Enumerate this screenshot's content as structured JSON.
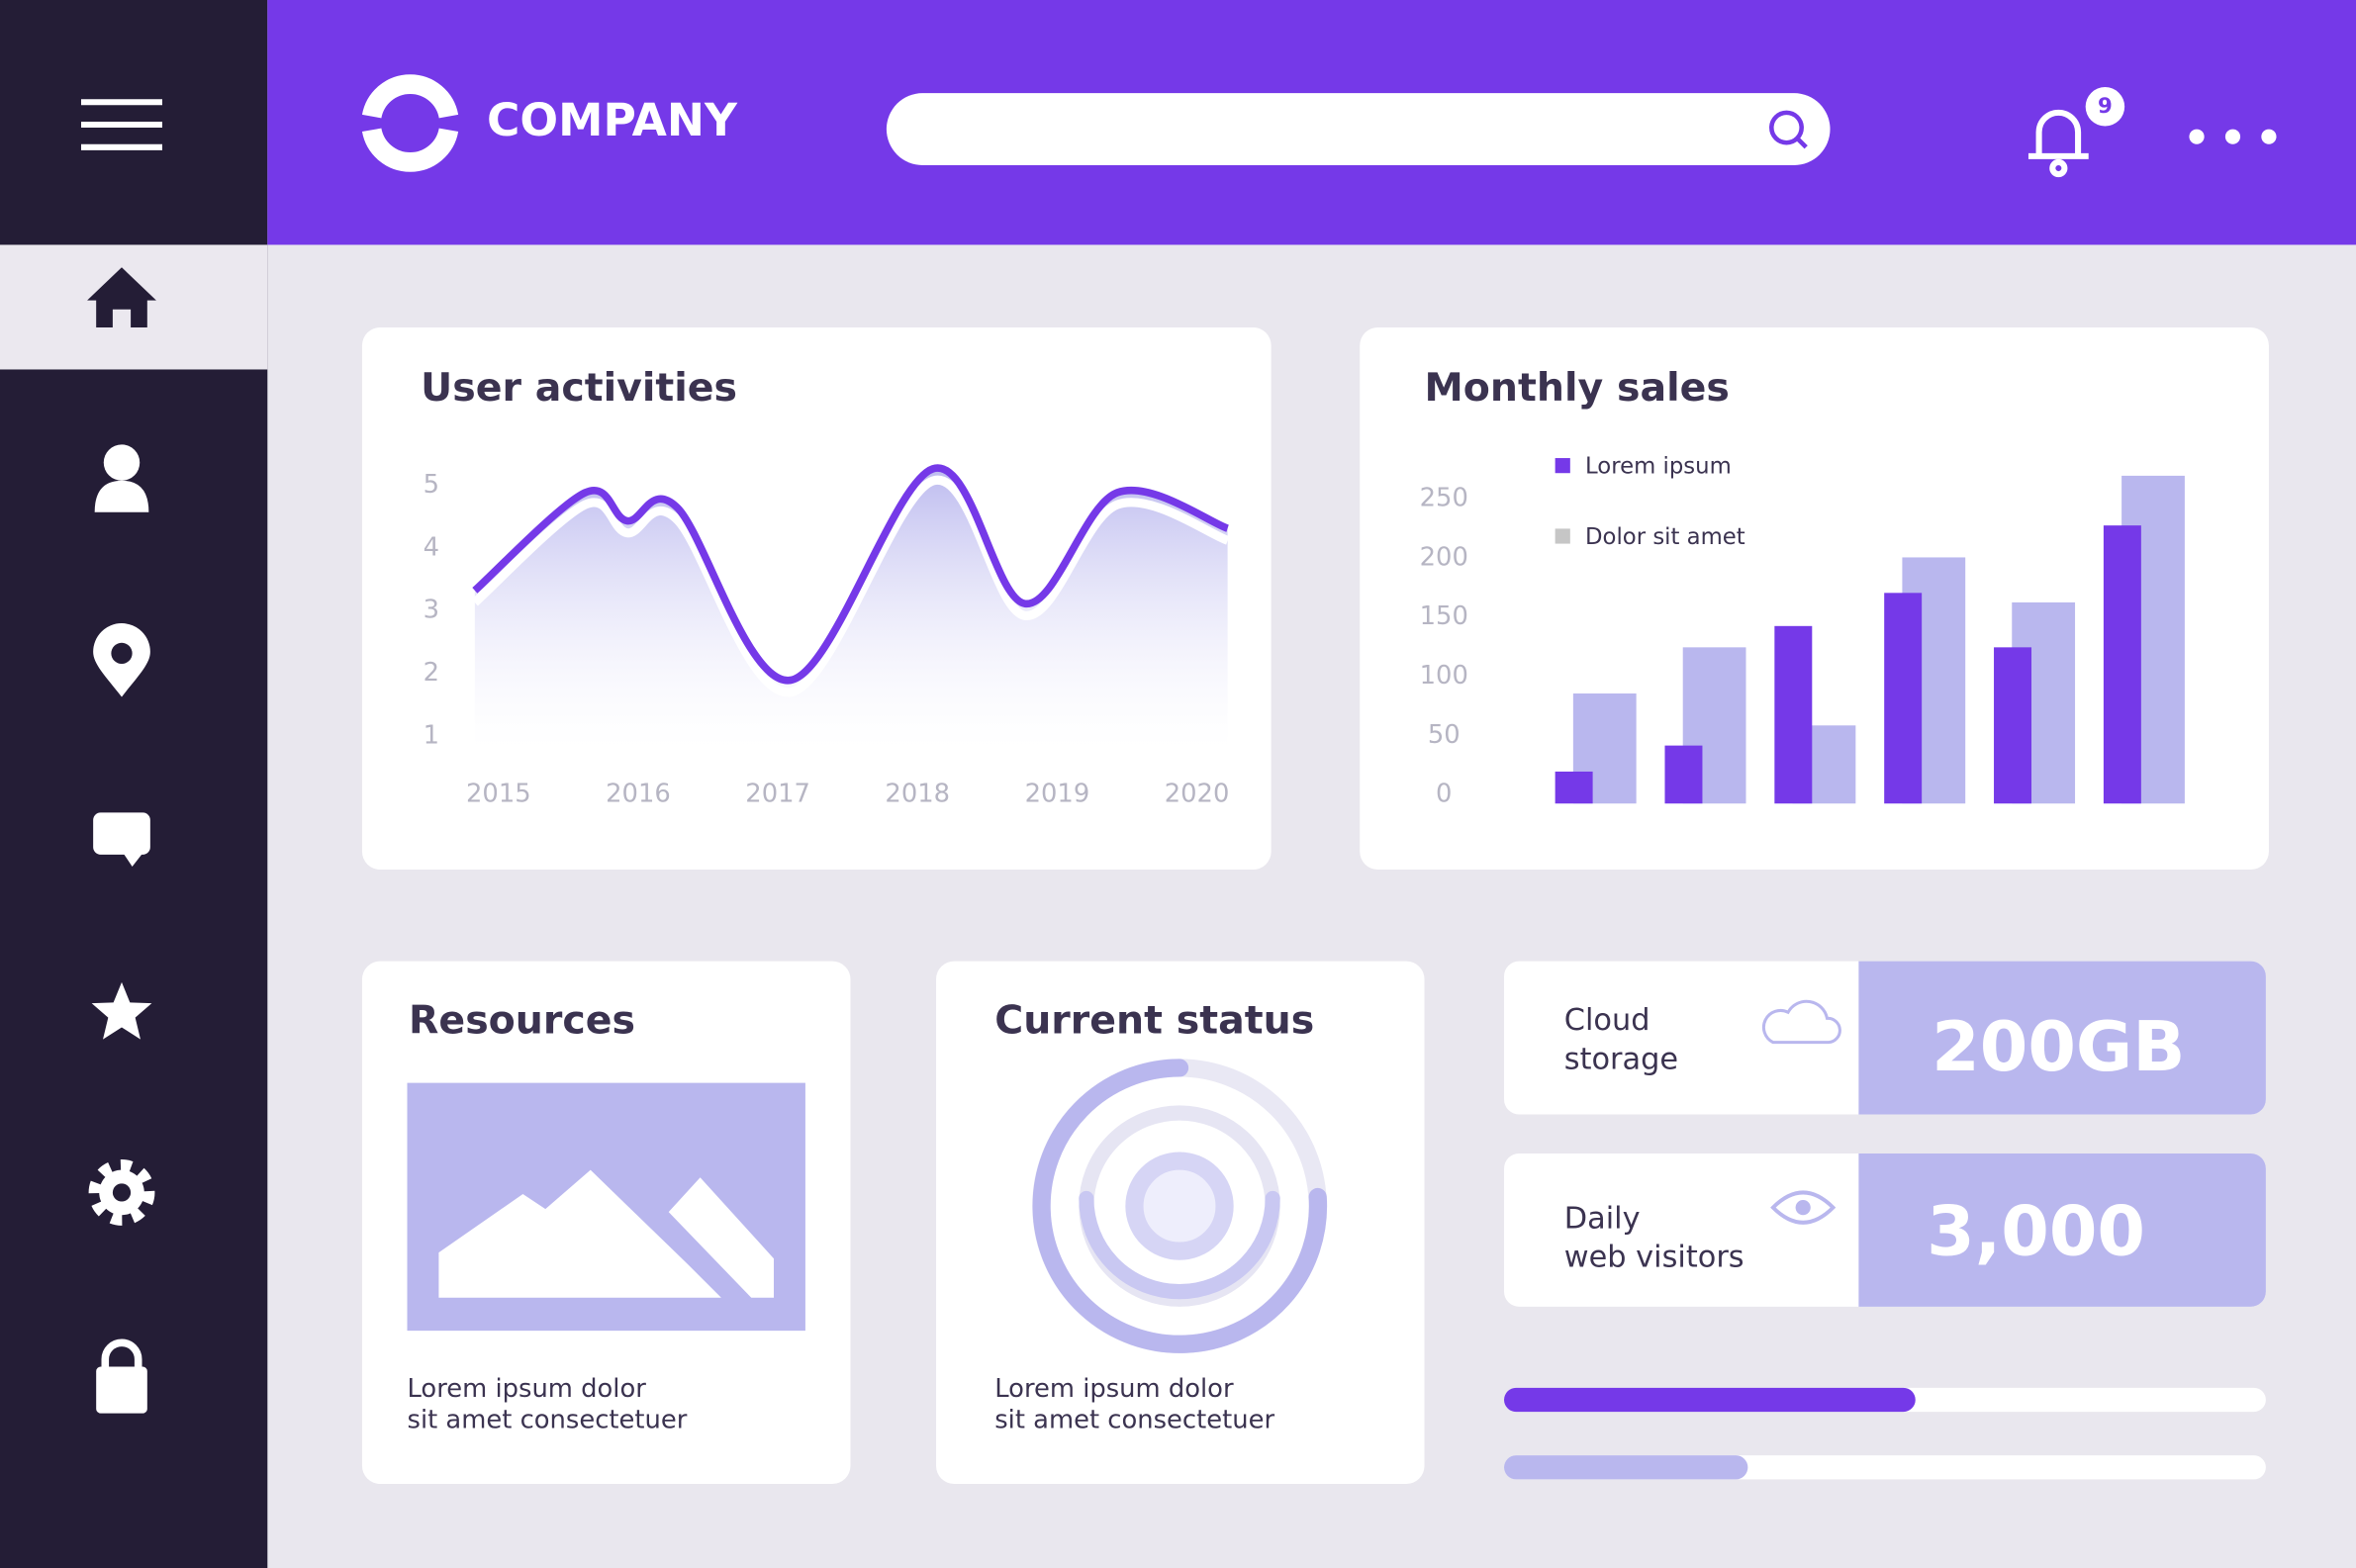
{
  "header": {
    "brand": "COMPANY",
    "notification_count": 9
  },
  "user_activities": {
    "type": "line",
    "title": "User activities",
    "x": [
      2014.83,
      2015.62,
      2015.92,
      2016.28,
      2017.09,
      2018.11,
      2018.77,
      2019.43,
      2020.22
    ],
    "values": [
      3.32,
      4.88,
      4.43,
      4.64,
      1.89,
      5.26,
      3.11,
      4.88,
      4.31
    ],
    "color": "#7539e8",
    "xlim": [
      2014.83,
      2020.22
    ],
    "xticks": [
      2015,
      2016,
      2017,
      2018,
      2019,
      2020
    ],
    "ylim": [
      0.8,
      5.4
    ],
    "yticks": [
      1,
      2,
      3,
      4,
      5
    ]
  },
  "monthly_sales": {
    "type": "bar",
    "title": "Monthly sales",
    "categories": [
      null,
      null,
      null,
      null,
      null,
      null
    ],
    "series": [
      {
        "name": "Lorem ipsum",
        "color": "#7539e8",
        "values": [
          27,
          49,
          150,
          178,
          132,
          235
        ]
      },
      {
        "name": "Dolor sit amet",
        "color": "#b9b7ee",
        "legend_color": "#c6c6c6",
        "values": [
          93,
          132,
          66,
          208,
          170,
          277
        ]
      }
    ],
    "ylim": [
      0,
      280
    ],
    "yticks": [
      0,
      50,
      100,
      150,
      200,
      250
    ]
  },
  "resources": {
    "title": "Resources",
    "caption": [
      "Lorem ipsum dolor",
      "sit amet consectetuer"
    ]
  },
  "current_status": {
    "title": "Current status",
    "caption": [
      "Lorem ipsum dolor",
      "sit amet consectetuer"
    ]
  },
  "stats": [
    {
      "label": [
        "Cloud",
        "storage"
      ],
      "value": "200GB"
    },
    {
      "label": [
        "Daily",
        "web visitors"
      ],
      "value": "3,000"
    }
  ],
  "progress": {
    "values": [
      54,
      32
    ],
    "xlim": [
      0,
      100
    ],
    "colors": [
      "#7539e8",
      "#b9b7ee"
    ]
  }
}
